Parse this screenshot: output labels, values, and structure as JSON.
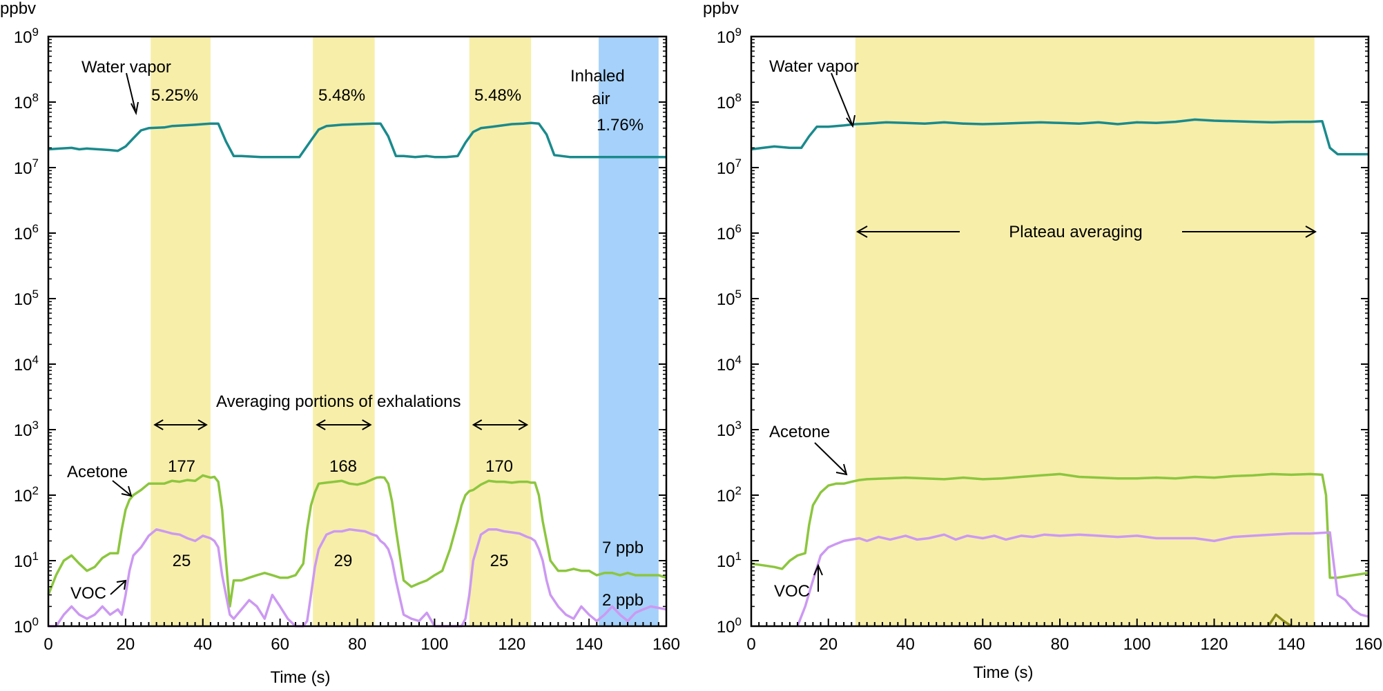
{
  "chart_data": [
    {
      "type": "line",
      "y_unit": "ppbv",
      "xlabel": "Time (s)",
      "xlim": [
        0,
        160
      ],
      "xticks": [
        0,
        20,
        40,
        60,
        80,
        100,
        120,
        140,
        160
      ],
      "yscale": "log",
      "ylim": [
        1,
        1000000000
      ],
      "yticks": [
        {
          "base": "10",
          "exp": "0"
        },
        {
          "base": "10",
          "exp": "1"
        },
        {
          "base": "10",
          "exp": "2"
        },
        {
          "base": "10",
          "exp": "3"
        },
        {
          "base": "10",
          "exp": "4"
        },
        {
          "base": "10",
          "exp": "5"
        },
        {
          "base": "10",
          "exp": "6"
        },
        {
          "base": "10",
          "exp": "7"
        },
        {
          "base": "10",
          "exp": "8"
        },
        {
          "base": "10",
          "exp": "9"
        }
      ],
      "shaded_regions": [
        {
          "x0": 26.5,
          "x1": 42,
          "color": "#f7eeaa"
        },
        {
          "x0": 68.5,
          "x1": 84.5,
          "color": "#f7eeaa"
        },
        {
          "x0": 109,
          "x1": 125,
          "color": "#f7eeaa"
        },
        {
          "x0": 142.5,
          "x1": 158,
          "color": "#a5d1fa"
        }
      ],
      "series": [
        {
          "id": "water",
          "color": "#1a8a8c",
          "x": [
            0,
            3,
            6,
            8,
            10,
            13,
            16,
            18,
            20,
            22,
            24,
            26,
            28,
            30,
            32,
            35,
            38,
            40,
            42,
            44,
            46,
            48,
            50,
            55,
            60,
            65,
            68,
            70,
            72,
            74,
            76,
            80,
            84,
            86,
            88,
            90,
            92,
            95,
            98,
            100,
            103,
            106,
            108,
            110,
            112,
            115,
            120,
            123,
            125,
            127,
            129,
            131,
            135,
            140,
            145,
            148,
            150,
            155,
            160
          ],
          "y": [
            19000000.0,
            19500000.0,
            20000000.0,
            19000000.0,
            19500000.0,
            19000000.0,
            18500000.0,
            18000000.0,
            21000000.0,
            28000000.0,
            37000000.0,
            40000000.0,
            40500000.0,
            41000000.0,
            43000000.0,
            44000000.0,
            45000000.0,
            46000000.0,
            47000000.0,
            47000000.0,
            25000000.0,
            15000000.0,
            15000000.0,
            14500000.0,
            14500000.0,
            14500000.0,
            26000000.0,
            38000000.0,
            43000000.0,
            44000000.0,
            45000000.0,
            46000000.0,
            47000000.0,
            47000000.0,
            30000000.0,
            15000000.0,
            15000000.0,
            14500000.0,
            15000000.0,
            14500000.0,
            14500000.0,
            15000000.0,
            24000000.0,
            35000000.0,
            40000000.0,
            42000000.0,
            46000000.0,
            47000000.0,
            48000000.0,
            47000000.0,
            32000000.0,
            15500000.0,
            14500000.0,
            14500000.0,
            14500000.0,
            14500000.0,
            14500000.0,
            14500000.0,
            14500000.0
          ]
        },
        {
          "id": "acetone",
          "color": "#8cc63e",
          "x": [
            0,
            2,
            4,
            6,
            8,
            10,
            12,
            14,
            16,
            18,
            19,
            20,
            21,
            22,
            24,
            26,
            28,
            30,
            32,
            34,
            36,
            38,
            40,
            42,
            43,
            44,
            45,
            46,
            47,
            48,
            50,
            52,
            54,
            56,
            58,
            60,
            62,
            64,
            66,
            67,
            68,
            69,
            70,
            72,
            74,
            76,
            78,
            80,
            82,
            84,
            85,
            86,
            87,
            88,
            89,
            90,
            92,
            94,
            96,
            98,
            100,
            102,
            104,
            106,
            107,
            108,
            109,
            110,
            112,
            114,
            116,
            118,
            120,
            122,
            124,
            125,
            126,
            127,
            128,
            129,
            130,
            132,
            134,
            136,
            138,
            140,
            142,
            144,
            146,
            148,
            150,
            152,
            154,
            156,
            158,
            160
          ],
          "y": [
            3,
            6,
            10,
            12,
            9,
            7,
            8,
            11,
            13,
            13,
            30,
            60,
            85,
            100,
            120,
            150,
            150,
            150,
            165,
            160,
            170,
            165,
            200,
            185,
            190,
            160,
            60,
            10,
            2,
            5,
            5,
            5.5,
            6,
            6.5,
            6,
            5.5,
            5.5,
            6,
            9,
            30,
            70,
            110,
            150,
            155,
            160,
            165,
            150,
            145,
            155,
            175,
            185,
            188,
            185,
            150,
            80,
            30,
            5,
            4,
            4.5,
            5,
            6,
            7,
            15,
            40,
            70,
            100,
            115,
            120,
            145,
            165,
            160,
            160,
            155,
            160,
            160,
            155,
            155,
            100,
            40,
            20,
            10,
            7,
            7,
            7.5,
            7,
            7,
            6,
            6.5,
            6.5,
            6,
            6.5,
            6,
            6,
            6,
            6,
            5.5
          ]
        },
        {
          "id": "voc",
          "color": "#cc99f2",
          "x": [
            0,
            2,
            4,
            6,
            8,
            10,
            12,
            14,
            16,
            18,
            19,
            20,
            21,
            22,
            24,
            26,
            28,
            30,
            32,
            34,
            36,
            38,
            40,
            42,
            43,
            44,
            45,
            46,
            47,
            48,
            50,
            52,
            54,
            56,
            58,
            60,
            62,
            64,
            66,
            67,
            68,
            69,
            70,
            72,
            74,
            76,
            78,
            80,
            82,
            84,
            85,
            86,
            87,
            88,
            89,
            90,
            92,
            94,
            96,
            98,
            100,
            102,
            104,
            106,
            107,
            108,
            109,
            110,
            112,
            114,
            116,
            118,
            120,
            122,
            124,
            125,
            126,
            127,
            128,
            129,
            130,
            132,
            134,
            136,
            138,
            140,
            142,
            144,
            146,
            148,
            150,
            152,
            154,
            156,
            158,
            160
          ],
          "y": [
            1,
            1,
            1.5,
            2,
            1.5,
            1.3,
            1.5,
            2,
            1.5,
            1.8,
            1.5,
            3,
            7,
            12,
            16,
            24,
            30,
            28,
            26,
            25,
            22,
            20,
            24,
            22,
            20,
            16,
            6,
            3,
            1.5,
            1.3,
            1.8,
            2.5,
            2,
            1.3,
            3,
            2,
            1.3,
            1,
            1,
            1.2,
            3,
            8,
            15,
            25,
            28,
            28,
            30,
            29,
            28,
            25,
            24,
            20,
            18,
            15,
            10,
            5,
            1.5,
            1.3,
            1.2,
            1.6,
            1,
            1,
            1,
            1,
            1,
            1.3,
            3,
            10,
            25,
            30,
            30,
            28,
            27,
            26,
            23,
            22,
            20,
            15,
            10,
            5,
            3,
            2,
            1.5,
            1.3,
            2,
            1.5,
            1.2,
            1.5,
            2,
            1.5,
            1.2,
            1.6,
            1.8,
            2,
            1.9,
            1.8
          ]
        }
      ],
      "annotations": {
        "water_vapor": "Water vapor",
        "inhaled_air": "Inhaled",
        "inhaled_air_2": "air",
        "pct": [
          "5.25%",
          "5.48%",
          "5.48%",
          "1.76%"
        ],
        "averaging": "Averaging portions of exhalations",
        "acetone": "Acetone",
        "acetone_values": [
          "177",
          "168",
          "170"
        ],
        "voc_values": [
          "25",
          "29",
          "25"
        ],
        "voc": "VOC",
        "inhaled_acetone": "7 ppb",
        "inhaled_voc": "2 ppb"
      }
    },
    {
      "type": "line",
      "y_unit": "ppbv",
      "xlabel": "Time (s)",
      "xlim": [
        0,
        160
      ],
      "xticks": [
        0,
        20,
        40,
        60,
        80,
        100,
        120,
        140,
        160
      ],
      "yscale": "log",
      "ylim": [
        1,
        1000000000
      ],
      "yticks": [
        {
          "base": "10",
          "exp": "0"
        },
        {
          "base": "10",
          "exp": "1"
        },
        {
          "base": "10",
          "exp": "2"
        },
        {
          "base": "10",
          "exp": "3"
        },
        {
          "base": "10",
          "exp": "4"
        },
        {
          "base": "10",
          "exp": "5"
        },
        {
          "base": "10",
          "exp": "6"
        },
        {
          "base": "10",
          "exp": "7"
        },
        {
          "base": "10",
          "exp": "8"
        },
        {
          "base": "10",
          "exp": "9"
        }
      ],
      "shaded_regions": [
        {
          "x0": 27,
          "x1": 146,
          "color": "#f7eeaa"
        }
      ],
      "series": [
        {
          "id": "water",
          "color": "#1a8a8c",
          "x": [
            0,
            3,
            6,
            10,
            13,
            15,
            17,
            20,
            24,
            27,
            30,
            35,
            40,
            45,
            50,
            55,
            60,
            65,
            70,
            75,
            80,
            85,
            90,
            95,
            100,
            105,
            110,
            115,
            120,
            125,
            130,
            135,
            140,
            145,
            148,
            150,
            152,
            156,
            160
          ],
          "y": [
            19000000.0,
            20000000.0,
            21000000.0,
            20000000.0,
            20000000.0,
            30000000.0,
            42000000.0,
            42000000.0,
            44000000.0,
            46000000.0,
            47000000.0,
            49000000.0,
            48000000.0,
            47000000.0,
            49000000.0,
            47000000.0,
            46000000.0,
            47000000.0,
            48000000.0,
            49000000.0,
            48000000.0,
            47000000.0,
            49000000.0,
            46000000.0,
            49000000.0,
            48000000.0,
            50000000.0,
            54000000.0,
            52000000.0,
            51000000.0,
            50000000.0,
            49000000.0,
            50000000.0,
            50000000.0,
            51000000.0,
            20000000.0,
            16000000.0,
            16000000.0,
            16000000.0
          ]
        },
        {
          "id": "acetone",
          "color": "#8cc63e",
          "x": [
            0,
            3,
            6,
            8,
            10,
            12,
            14,
            15,
            16,
            18,
            20,
            22,
            24,
            26,
            28,
            30,
            35,
            40,
            45,
            50,
            55,
            60,
            65,
            70,
            75,
            80,
            85,
            90,
            95,
            100,
            105,
            110,
            115,
            120,
            125,
            130,
            135,
            140,
            145,
            148,
            149,
            150,
            152,
            156,
            160
          ],
          "y": [
            9,
            8.5,
            8,
            7.5,
            10,
            12,
            13,
            35,
            70,
            110,
            140,
            150,
            150,
            160,
            170,
            175,
            180,
            185,
            180,
            175,
            185,
            175,
            180,
            190,
            200,
            210,
            190,
            185,
            180,
            180,
            185,
            180,
            190,
            185,
            195,
            200,
            210,
            205,
            210,
            205,
            100,
            5.5,
            5.5,
            6,
            6.5
          ]
        },
        {
          "id": "voc",
          "color": "#cc99f2",
          "x": [
            12,
            14,
            16,
            18,
            20,
            22,
            24,
            26,
            28,
            30,
            33,
            36,
            40,
            43,
            46,
            50,
            53,
            56,
            60,
            63,
            66,
            70,
            73,
            76,
            80,
            85,
            90,
            95,
            100,
            105,
            110,
            115,
            120,
            125,
            130,
            135,
            140,
            145,
            150,
            152,
            154,
            156,
            158,
            160
          ],
          "y": [
            1,
            2,
            5,
            12,
            16,
            18,
            20,
            21,
            22,
            20,
            23,
            21,
            24,
            21,
            22,
            25,
            21,
            24,
            22,
            24,
            21,
            24,
            23,
            25,
            24,
            25,
            24,
            23,
            24,
            22,
            22,
            22,
            20,
            23,
            24,
            25,
            26,
            26,
            27,
            3,
            2.5,
            1.8,
            1.5,
            1.4
          ]
        },
        {
          "id": "minor",
          "color": "#8a8a1a",
          "x": [
            134,
            136,
            138,
            140
          ],
          "y": [
            1,
            1.5,
            1.2,
            1
          ]
        }
      ],
      "annotations": {
        "water_vapor": "Water vapor",
        "plateau": "Plateau averaging",
        "acetone": "Acetone",
        "voc": "VOC"
      }
    }
  ]
}
